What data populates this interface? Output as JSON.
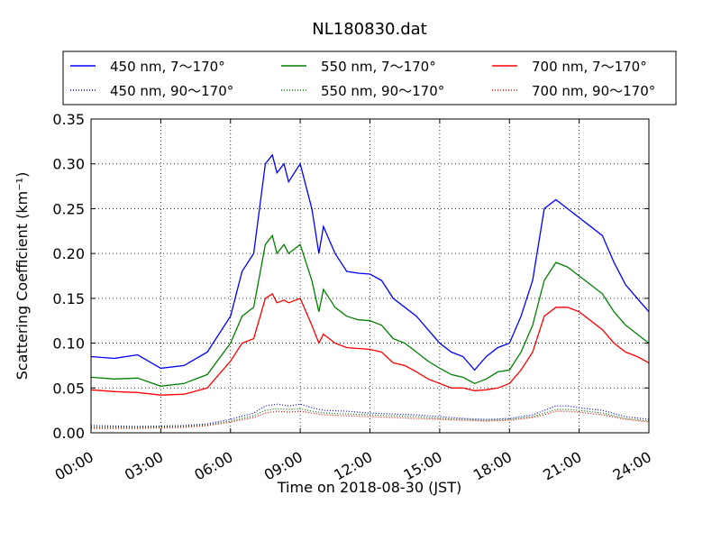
{
  "chart_data": {
    "type": "line",
    "title": "NL180830.dat",
    "xlabel": "Time on 2018-08-30 (JST)",
    "ylabel": "Scattering Coefficient (km⁻¹)",
    "xlim": [
      0,
      24
    ],
    "ylim": [
      0,
      0.35
    ],
    "x_ticks": [
      "00:00",
      "03:00",
      "06:00",
      "09:00",
      "12:00",
      "15:00",
      "18:00",
      "21:00",
      "24:00"
    ],
    "y_ticks": [
      "0.00",
      "0.05",
      "0.10",
      "0.15",
      "0.20",
      "0.25",
      "0.30",
      "0.35"
    ],
    "grid": true,
    "legend_position": "top",
    "x_unit": "hours",
    "series": [
      {
        "name": "450 nm, 7～170°",
        "color": "#0000ff",
        "style": "solid",
        "x": [
          0,
          1,
          2,
          3,
          4,
          5,
          6,
          6.5,
          7,
          7.5,
          7.8,
          8,
          8.3,
          8.5,
          9,
          9.5,
          9.8,
          10,
          10.5,
          11,
          11.5,
          12,
          12.5,
          13,
          13.5,
          14,
          14.5,
          15,
          15.5,
          16,
          16.5,
          17,
          17.5,
          18,
          18.5,
          19,
          19.5,
          20,
          20.5,
          21,
          21.5,
          22,
          22.5,
          23,
          23.5,
          24
        ],
        "values": [
          0.085,
          0.083,
          0.087,
          0.072,
          0.075,
          0.09,
          0.13,
          0.18,
          0.2,
          0.3,
          0.31,
          0.29,
          0.3,
          0.28,
          0.3,
          0.25,
          0.2,
          0.23,
          0.2,
          0.18,
          0.178,
          0.177,
          0.17,
          0.15,
          0.14,
          0.13,
          0.115,
          0.1,
          0.09,
          0.085,
          0.07,
          0.085,
          0.095,
          0.1,
          0.13,
          0.17,
          0.25,
          0.26,
          0.25,
          0.24,
          0.23,
          0.22,
          0.19,
          0.165,
          0.15,
          0.135
        ]
      },
      {
        "name": "550 nm, 7～170°",
        "color": "#008000",
        "style": "solid",
        "x": [
          0,
          1,
          2,
          3,
          4,
          5,
          6,
          6.5,
          7,
          7.5,
          7.8,
          8,
          8.3,
          8.5,
          9,
          9.5,
          9.8,
          10,
          10.5,
          11,
          11.5,
          12,
          12.5,
          13,
          13.5,
          14,
          14.5,
          15,
          15.5,
          16,
          16.5,
          17,
          17.5,
          18,
          18.5,
          19,
          19.5,
          20,
          20.5,
          21,
          21.5,
          22,
          22.5,
          23,
          23.5,
          24
        ],
        "values": [
          0.062,
          0.06,
          0.061,
          0.052,
          0.055,
          0.065,
          0.1,
          0.13,
          0.14,
          0.21,
          0.22,
          0.2,
          0.21,
          0.2,
          0.21,
          0.17,
          0.135,
          0.16,
          0.14,
          0.13,
          0.126,
          0.125,
          0.12,
          0.105,
          0.1,
          0.09,
          0.08,
          0.072,
          0.065,
          0.062,
          0.055,
          0.06,
          0.068,
          0.07,
          0.09,
          0.12,
          0.17,
          0.19,
          0.185,
          0.175,
          0.165,
          0.155,
          0.135,
          0.12,
          0.11,
          0.1
        ]
      },
      {
        "name": "700 nm, 7～170°",
        "color": "#ff0000",
        "style": "solid",
        "x": [
          0,
          1,
          2,
          3,
          4,
          5,
          6,
          6.5,
          7,
          7.5,
          7.8,
          8,
          8.3,
          8.5,
          9,
          9.5,
          9.8,
          10,
          10.5,
          11,
          11.5,
          12,
          12.5,
          13,
          13.5,
          14,
          14.5,
          15,
          15.5,
          16,
          16.5,
          17,
          17.5,
          18,
          18.5,
          19,
          19.5,
          20,
          20.5,
          21,
          21.5,
          22,
          22.5,
          23,
          23.5,
          24
        ],
        "values": [
          0.048,
          0.046,
          0.045,
          0.042,
          0.043,
          0.05,
          0.08,
          0.1,
          0.105,
          0.15,
          0.155,
          0.145,
          0.148,
          0.145,
          0.15,
          0.12,
          0.1,
          0.11,
          0.1,
          0.095,
          0.094,
          0.093,
          0.09,
          0.078,
          0.075,
          0.068,
          0.06,
          0.055,
          0.05,
          0.05,
          0.047,
          0.048,
          0.05,
          0.055,
          0.07,
          0.09,
          0.13,
          0.14,
          0.14,
          0.135,
          0.125,
          0.115,
          0.1,
          0.09,
          0.085,
          0.078
        ]
      },
      {
        "name": "450 nm, 90～170°",
        "color": "#0000ff",
        "style": "dotted",
        "x": [
          0,
          2,
          4,
          5,
          6,
          7,
          7.5,
          8,
          8.5,
          9,
          9.5,
          10,
          11,
          12,
          13,
          14,
          15,
          16,
          17,
          18,
          19,
          19.5,
          20,
          20.5,
          21,
          22,
          23,
          24
        ],
        "values": [
          0.008,
          0.007,
          0.008,
          0.01,
          0.015,
          0.022,
          0.03,
          0.032,
          0.03,
          0.032,
          0.028,
          0.025,
          0.024,
          0.022,
          0.021,
          0.02,
          0.018,
          0.016,
          0.015,
          0.016,
          0.02,
          0.025,
          0.03,
          0.03,
          0.028,
          0.025,
          0.018,
          0.015
        ]
      },
      {
        "name": "550 nm, 90～170°",
        "color": "#008000",
        "style": "dotted",
        "x": [
          0,
          2,
          4,
          5,
          6,
          7,
          7.5,
          8,
          8.5,
          9,
          9.5,
          10,
          11,
          12,
          13,
          14,
          15,
          16,
          17,
          18,
          19,
          19.5,
          20,
          20.5,
          21,
          22,
          23,
          24
        ],
        "values": [
          0.006,
          0.006,
          0.007,
          0.009,
          0.013,
          0.019,
          0.025,
          0.027,
          0.026,
          0.027,
          0.024,
          0.022,
          0.021,
          0.02,
          0.019,
          0.018,
          0.016,
          0.015,
          0.014,
          0.015,
          0.018,
          0.022,
          0.026,
          0.026,
          0.025,
          0.022,
          0.016,
          0.013
        ]
      },
      {
        "name": "700 nm, 90～170°",
        "color": "#ff0000",
        "style": "dotted",
        "x": [
          0,
          2,
          4,
          5,
          6,
          7,
          7.5,
          8,
          8.5,
          9,
          9.5,
          10,
          11,
          12,
          13,
          14,
          15,
          16,
          17,
          18,
          19,
          19.5,
          20,
          20.5,
          21,
          22,
          23,
          24
        ],
        "values": [
          0.005,
          0.005,
          0.006,
          0.008,
          0.012,
          0.017,
          0.022,
          0.024,
          0.023,
          0.024,
          0.022,
          0.02,
          0.019,
          0.018,
          0.017,
          0.016,
          0.015,
          0.014,
          0.013,
          0.014,
          0.017,
          0.02,
          0.024,
          0.024,
          0.023,
          0.02,
          0.015,
          0.012
        ]
      }
    ]
  }
}
